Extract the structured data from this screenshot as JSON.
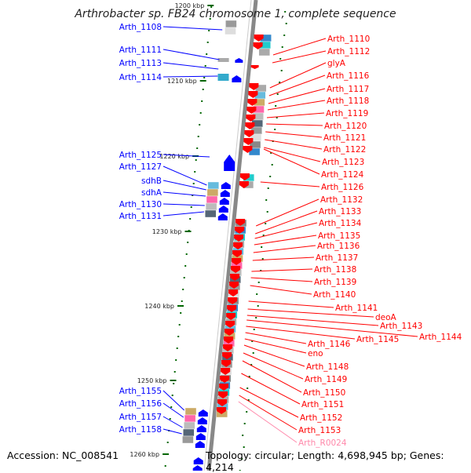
{
  "title": "Arthrobacter sp. FB24 chromosome 1, complete sequence",
  "footer": {
    "accession": "Accession: NC_008541",
    "topology": "Topology: circular; Length: 4,698,945 bp; Genes: 4,214"
  },
  "colors": {
    "minus_strand": "#0000ff",
    "plus_strand": "#ff0000",
    "rna": "#ff88aa",
    "ruler": "#006600",
    "chromosome_line": "#888888"
  },
  "ruler_ticks": [
    "1200 kbp",
    "1210 kbp",
    "1220 kbp",
    "1230 kbp",
    "1240 kbp",
    "1250 kbp",
    "1260 kbp"
  ],
  "left_genes": [
    "Arth_1108",
    "Arth_1111",
    "Arth_1113",
    "Arth_1114",
    "Arth_1125",
    "Arth_1127",
    "sdhB",
    "sdhA",
    "Arth_1130",
    "Arth_1131",
    "Arth_1155",
    "Arth_1156",
    "Arth_1157",
    "Arth_1158"
  ],
  "right_genes": [
    "Arth_1110",
    "Arth_1112",
    "glyA",
    "Arth_1116",
    "Arth_1117",
    "Arth_1118",
    "Arth_1119",
    "Arth_1120",
    "Arth_1121",
    "Arth_1122",
    "Arth_1123",
    "Arth_1124",
    "Arth_1126",
    "Arth_1132",
    "Arth_1133",
    "Arth_1134",
    "Arth_1135",
    "Arth_1136",
    "Arth_1137",
    "Arth_1138",
    "Arth_1139",
    "Arth_1140",
    "Arth_1141",
    "deoA",
    "Arth_1143",
    "Arth_1144",
    "Arth_1145",
    "Arth_1146",
    "eno",
    "Arth_1148",
    "Arth_1149",
    "Arth_1150",
    "Arth_1151",
    "Arth_1152",
    "Arth_1153",
    "Arth_R0024"
  ]
}
